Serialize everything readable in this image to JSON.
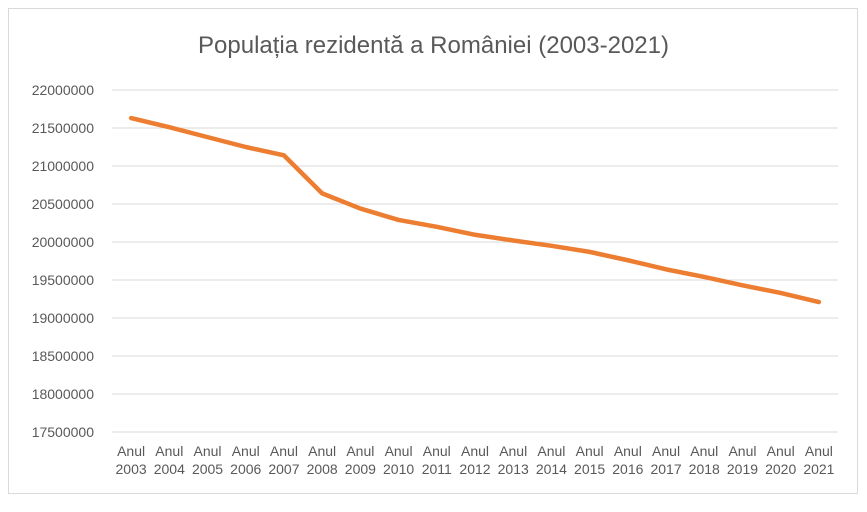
{
  "chart_data": {
    "type": "line",
    "title": "Populația rezidentă a României (2003-2021)",
    "xlabel": "",
    "ylabel": "",
    "categories": [
      "Anul 2003",
      "Anul 2004",
      "Anul 2005",
      "Anul 2006",
      "Anul 2007",
      "Anul 2008",
      "Anul 2009",
      "Anul 2010",
      "Anul 2011",
      "Anul 2012",
      "Anul 2013",
      "Anul 2014",
      "Anul 2015",
      "Anul 2016",
      "Anul 2017",
      "Anul 2018",
      "Anul 2019",
      "Anul 2020",
      "Anul 2021"
    ],
    "series": [
      {
        "name": "Populația rezidentă",
        "color": "#ed7d31",
        "values": [
          21630000,
          21510000,
          21380000,
          21250000,
          21140000,
          20640000,
          20440000,
          20290000,
          20200000,
          20095000,
          20020000,
          19950000,
          19870000,
          19760000,
          19640000,
          19540000,
          19430000,
          19330000,
          19210000
        ]
      }
    ],
    "ylim": [
      17500000,
      22000000
    ],
    "yticks": [
      "17500000",
      "18000000",
      "18500000",
      "19000000",
      "19500000",
      "20000000",
      "20500000",
      "21000000",
      "21500000",
      "22000000"
    ],
    "grid": true,
    "legend": "none"
  }
}
